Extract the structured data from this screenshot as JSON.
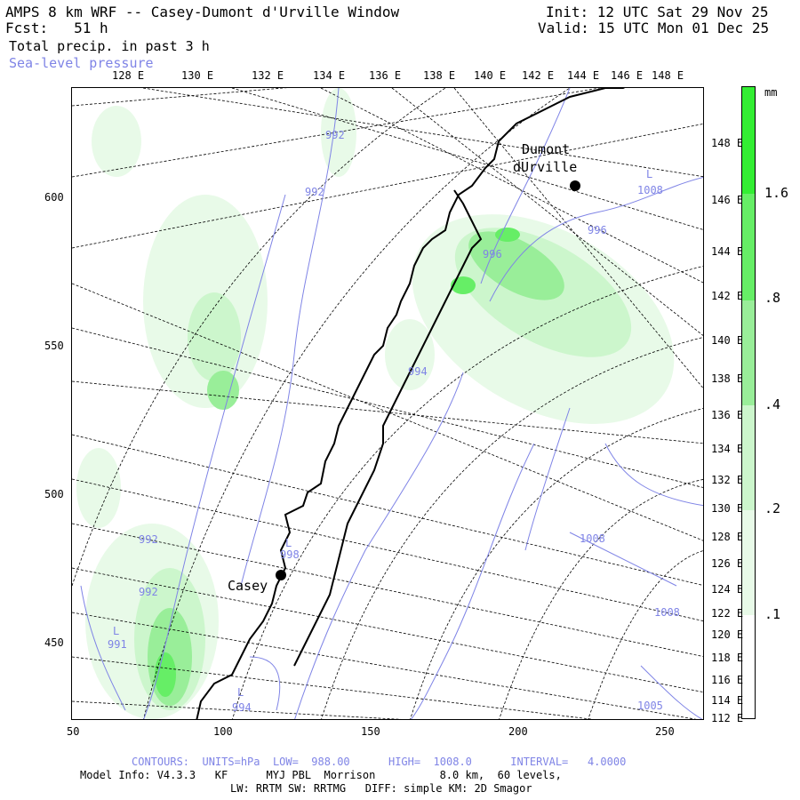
{
  "header": {
    "title": "AMPS 8 km WRF -- Casey-Dumont d'Urville Window",
    "fcst": "Fcst:   51 h",
    "field": "Total precip. in past 3 h",
    "overlay": "Sea-level pressure",
    "init": "Init: 12 UTC Sat 29 Nov 25",
    "valid": "Valid: 15 UTC Mon 01 Dec 25"
  },
  "top_lon_labels": [
    "128 E",
    "130 E",
    "132 E",
    "134 E",
    "136 E",
    "138 E",
    "140 E",
    "142 E",
    "144 E",
    "146 E",
    "148 E"
  ],
  "right_lon_labels": [
    "148 E",
    "146 E",
    "144 E",
    "142 E",
    "140 E",
    "138 E",
    "136 E",
    "134 E",
    "132 E",
    "130 E",
    "128 E",
    "126 E",
    "124 E",
    "122 E",
    "120 E",
    "118 E",
    "116 E",
    "114 E",
    "112 E"
  ],
  "x_ticks": [
    "50",
    "100",
    "150",
    "200",
    "250"
  ],
  "y_ticks": [
    "600",
    "550",
    "500",
    "450"
  ],
  "stations": [
    {
      "name": "Dumont",
      "name2": "dUrville"
    },
    {
      "name": "Casey"
    }
  ],
  "pressure_labels": [
    "992",
    "992",
    "996",
    "996",
    "1008",
    "994",
    "998",
    "1008",
    "1008",
    "992",
    "992",
    "991",
    "994",
    "1005"
  ],
  "low_markers": [
    "L",
    "L",
    "L",
    "L"
  ],
  "colorbar": {
    "unit": "mm",
    "levels": [
      "1.6",
      ".8",
      ".4",
      ".2",
      ".1"
    ],
    "colors": [
      "#33ee33",
      "#66ee66",
      "#99ee99",
      "#ccf6cc",
      "#e8fae8"
    ]
  },
  "footer": {
    "contours": "CONTOURS:  UNITS=hPa  LOW=  988.00      HIGH=  1008.0      INTERVAL=   4.0000",
    "model": "Model Info: V4.3.3   KF      MYJ PBL  Morrison          8.0 km,  60 levels,",
    "physics": "LW: RRTM SW: RRTMG   DIFF: simple KM: 2D Smagor"
  },
  "colors": {
    "contour": "#7f84e6",
    "coast": "#000000"
  }
}
